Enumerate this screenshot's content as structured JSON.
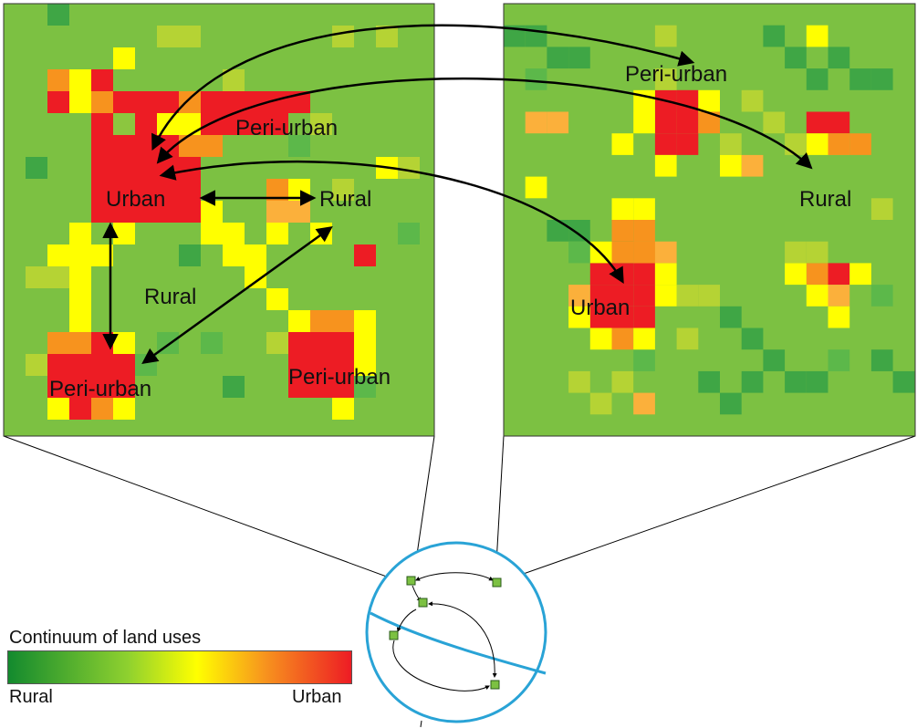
{
  "colors": {
    "rural": "#1e8f2e",
    "base_green": "#7cc142",
    "yellow": "#ffff00",
    "orange": "#f7931e",
    "urban": "#ed1c24",
    "globe": "#29a3d6"
  },
  "left_panel": {
    "labels": {
      "urban": "Urban",
      "peri_urban_top": "Peri-urban",
      "rural_right": "Rural",
      "rural_mid": "Rural",
      "peri_urban_bottom_left": "Peri-urban",
      "peri_urban_bottom_right": "Peri-urban"
    }
  },
  "right_panel": {
    "labels": {
      "peri_urban": "Peri-urban",
      "rural": "Rural",
      "urban": "Urban"
    }
  },
  "legend": {
    "title": "Continuum of land uses",
    "left_label": "Rural",
    "right_label": "Urban"
  }
}
